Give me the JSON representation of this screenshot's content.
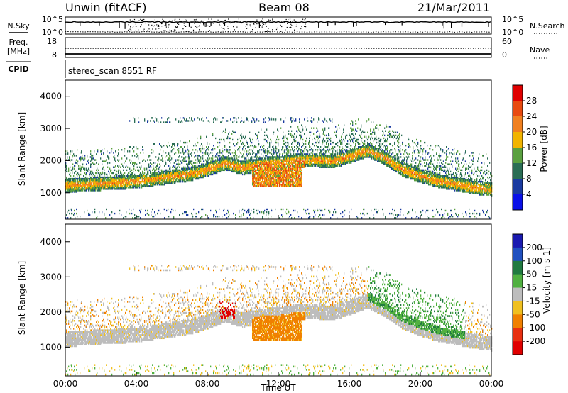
{
  "header": {
    "station": "Unwin (fitACF)",
    "beam": "Beam 08",
    "date": "21/Mar/2011"
  },
  "noise_panel": {
    "left_label": "N.Sky",
    "right_label": "N.Search",
    "left_ticks": [
      "10^5",
      "10^0"
    ],
    "right_ticks": [
      "10^5",
      "10^0"
    ]
  },
  "freq_panel": {
    "left_label": "Freq.",
    "left_unit": "[MHz]",
    "right_label": "Nave",
    "left_ticks": [
      "18",
      "8"
    ],
    "right_ticks": [
      "60",
      "0"
    ]
  },
  "cpid_panel": {
    "label": "CPID",
    "text": "stereo_scan 8551 RF"
  },
  "chart_data": [
    {
      "type": "heatmap",
      "name": "power",
      "ylabel": "Slant Range [km]",
      "ylim": [
        180,
        4500
      ],
      "yticks": [
        1000,
        2000,
        3000,
        4000
      ],
      "xlim": [
        0,
        24
      ],
      "xticks": [
        "00:00",
        "04:00",
        "08:00",
        "12:00",
        "16:00",
        "20:00",
        "00:00"
      ],
      "colorbar": {
        "label": "Power [dB]",
        "range": [
          0,
          32
        ],
        "ticks": [
          "4",
          "8",
          "12",
          "16",
          "20",
          "24",
          "28"
        ],
        "colors": [
          "#0a10e8",
          "#1a3aa0",
          "#2a6d55",
          "#5aa040",
          "#f2b400",
          "#f08020",
          "#e84a10",
          "#e00000"
        ]
      }
    },
    {
      "type": "heatmap",
      "name": "velocity",
      "ylabel": "Slant Range [km]",
      "ylim": [
        180,
        4500
      ],
      "yticks": [
        1000,
        2000,
        3000,
        4000
      ],
      "xlim": [
        0,
        24
      ],
      "xticks": [
        "00:00",
        "04:00",
        "08:00",
        "12:00",
        "16:00",
        "20:00",
        "00:00"
      ],
      "xlabel": "Time UT",
      "colorbar": {
        "label": "Velocity [m s-1]",
        "ticks": [
          "200",
          "100",
          "50",
          "15",
          "-15",
          "-50",
          "-100",
          "-200"
        ],
        "colors": [
          "#1a1ab0",
          "#2050c0",
          "#207a40",
          "#50b040",
          "#bdbdbd",
          "#f0c020",
          "#f08000",
          "#e83010",
          "#e00000"
        ]
      }
    }
  ]
}
